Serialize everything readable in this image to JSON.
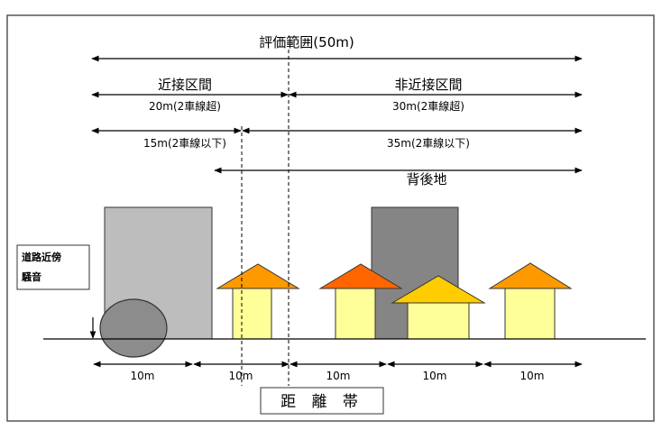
{
  "labels": {
    "evaluation_range": "評価範囲(50m)",
    "near_section": "近接区間",
    "non_near_section": "非近接区間",
    "near_over_2lanes": "20m(2車線超)",
    "non_near_over_2lanes": "30m(2車線超)",
    "near_2lanes_or_less": "15m(2車線以下)",
    "non_near_2lanes_or_less": "35m(2車線以下)",
    "background_area": "背後地",
    "road_noise_line1": "道路近傍",
    "road_noise_line2": "騒音",
    "distance_band": "距 離 帯"
  },
  "distance_ticks": [
    "10m",
    "10m",
    "10m",
    "10m",
    "10m"
  ],
  "colors": {
    "frame": "#555555",
    "gray_building": "#bdbdbd",
    "dark_building": "#858585",
    "noise_circle": "#8c8c8c",
    "house_wall": "#ffff99",
    "roof_orange": "#ff9900",
    "roof_red_orange": "#ff6600",
    "roof_yellow": "#ffcc00",
    "line": "#000000"
  }
}
